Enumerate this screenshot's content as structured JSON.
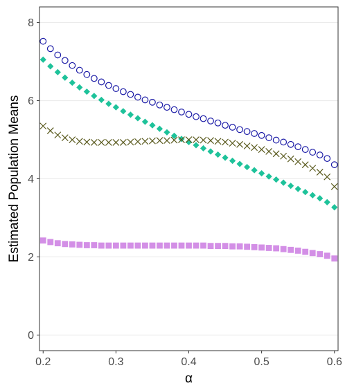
{
  "chart_data": {
    "type": "scatter",
    "title": "",
    "xlabel": "α",
    "ylabel": "Estimated Population Means",
    "xlim": [
      0.195,
      0.605
    ],
    "ylim": [
      -0.4,
      8.4
    ],
    "xticks": [
      0.2,
      0.3,
      0.4,
      0.5,
      0.6
    ],
    "xtick_labels": [
      "0.2",
      "0.3",
      "0.4",
      "0.5",
      "0.6"
    ],
    "yticks": [
      0,
      2,
      4,
      6,
      8
    ],
    "ytick_labels": [
      "0",
      "2",
      "4",
      "6",
      "8"
    ],
    "grid": true,
    "legend": "none",
    "x": [
      0.2,
      0.21,
      0.22,
      0.23,
      0.24,
      0.25,
      0.26,
      0.27,
      0.28,
      0.29,
      0.3,
      0.31,
      0.32,
      0.33,
      0.34,
      0.35,
      0.36,
      0.37,
      0.38,
      0.39,
      0.4,
      0.41,
      0.42,
      0.43,
      0.44,
      0.45,
      0.46,
      0.47,
      0.48,
      0.49,
      0.5,
      0.51,
      0.52,
      0.53,
      0.54,
      0.55,
      0.56,
      0.57,
      0.58,
      0.59,
      0.6
    ],
    "series": [
      {
        "marker": "open-circle",
        "color": "#1a1aa6",
        "values": [
          7.52,
          7.33,
          7.17,
          7.03,
          6.9,
          6.78,
          6.67,
          6.57,
          6.48,
          6.39,
          6.31,
          6.23,
          6.16,
          6.09,
          6.02,
          5.96,
          5.89,
          5.83,
          5.77,
          5.71,
          5.65,
          5.59,
          5.54,
          5.48,
          5.43,
          5.37,
          5.32,
          5.26,
          5.21,
          5.16,
          5.11,
          5.05,
          4.99,
          4.94,
          4.88,
          4.82,
          4.75,
          4.68,
          4.61,
          4.52,
          4.36
        ]
      },
      {
        "marker": "diamond",
        "color": "#1ec29a",
        "values": [
          7.05,
          6.88,
          6.73,
          6.59,
          6.46,
          6.34,
          6.23,
          6.12,
          6.02,
          5.92,
          5.83,
          5.73,
          5.64,
          5.55,
          5.46,
          5.37,
          5.28,
          5.19,
          5.1,
          5.02,
          4.94,
          4.86,
          4.78,
          4.7,
          4.62,
          4.54,
          4.46,
          4.38,
          4.3,
          4.22,
          4.14,
          4.06,
          3.98,
          3.9,
          3.82,
          3.74,
          3.66,
          3.58,
          3.5,
          3.4,
          3.27
        ]
      },
      {
        "marker": "x",
        "color": "#5a5a1e",
        "values": [
          5.35,
          5.23,
          5.12,
          5.05,
          5.0,
          4.96,
          4.94,
          4.93,
          4.93,
          4.93,
          4.93,
          4.93,
          4.94,
          4.95,
          4.96,
          4.97,
          4.98,
          4.98,
          4.99,
          5.0,
          5.0,
          5.0,
          4.99,
          4.98,
          4.96,
          4.94,
          4.91,
          4.88,
          4.84,
          4.8,
          4.75,
          4.7,
          4.64,
          4.58,
          4.51,
          4.44,
          4.36,
          4.27,
          4.17,
          4.05,
          3.8
        ]
      },
      {
        "marker": "square",
        "color": "#d38fe6",
        "values": [
          2.42,
          2.38,
          2.35,
          2.33,
          2.32,
          2.31,
          2.3,
          2.3,
          2.29,
          2.29,
          2.29,
          2.29,
          2.29,
          2.29,
          2.29,
          2.29,
          2.29,
          2.29,
          2.29,
          2.29,
          2.29,
          2.29,
          2.29,
          2.28,
          2.28,
          2.28,
          2.27,
          2.27,
          2.26,
          2.25,
          2.24,
          2.23,
          2.22,
          2.2,
          2.18,
          2.16,
          2.13,
          2.1,
          2.07,
          2.03,
          1.96
        ]
      }
    ]
  }
}
